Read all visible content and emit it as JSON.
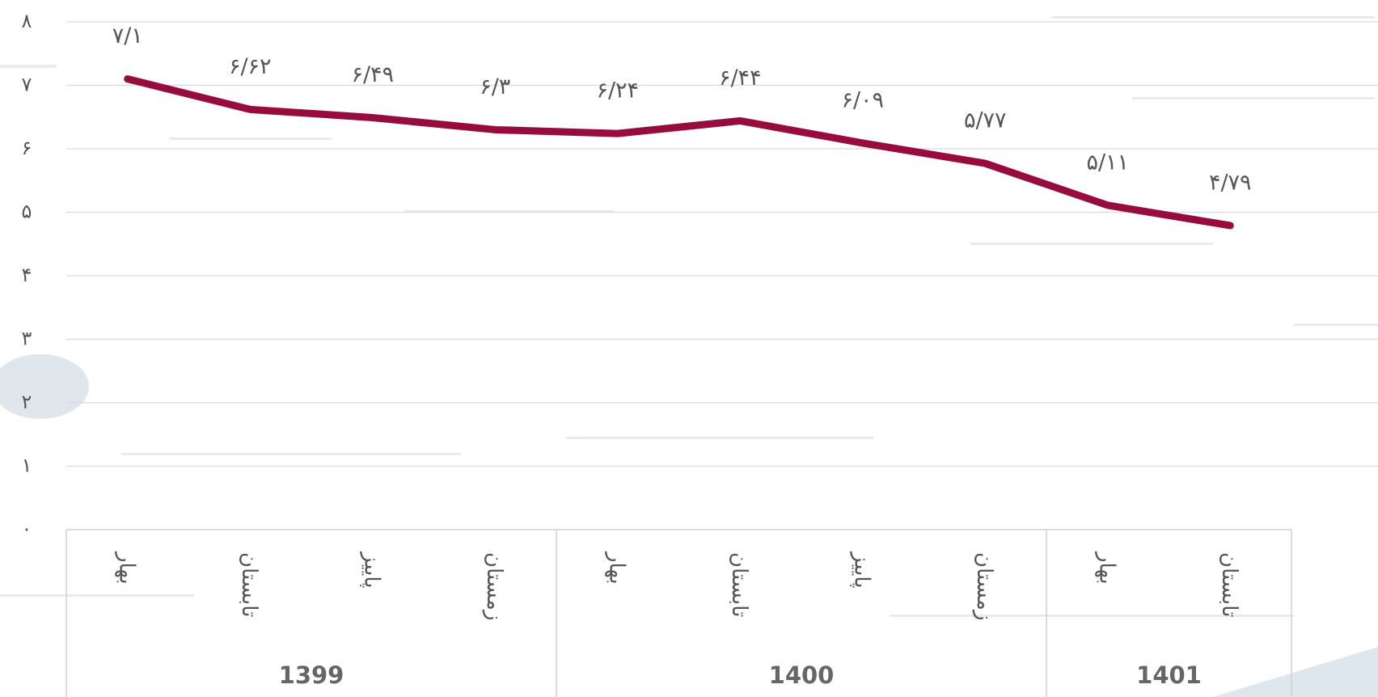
{
  "chart_data": {
    "type": "line",
    "categories": [
      "بهار",
      "تابستان",
      "پاییز",
      "زمستان",
      "بهار",
      "تابستان",
      "پاییز",
      "زمستان",
      "بهار",
      "تابستان"
    ],
    "groups": [
      "1399",
      "1399",
      "1399",
      "1399",
      "1400",
      "1400",
      "1400",
      "1400",
      "1401",
      "1401"
    ],
    "series": [
      {
        "color": "#960c3c",
        "values": [
          7.1,
          6.62,
          6.49,
          6.3,
          6.24,
          6.44,
          6.09,
          5.77,
          5.11,
          4.79
        ],
        "value_labels": [
          "۷/۱",
          "۶/۶۲",
          "۶/۴۹",
          "۶/۳",
          "۶/۲۴",
          "۶/۴۴",
          "۶/۰۹",
          "۵/۷۷",
          "۵/۱۱",
          "۴/۷۹"
        ]
      }
    ],
    "ylim": [
      0,
      8
    ],
    "yticks": [
      {
        "value": 0,
        "label": "۰"
      },
      {
        "value": 1,
        "label": "۱"
      },
      {
        "value": 2,
        "label": "۲"
      },
      {
        "value": 3,
        "label": "۳"
      },
      {
        "value": 4,
        "label": "۴"
      },
      {
        "value": 5,
        "label": "۵"
      },
      {
        "value": 6,
        "label": "۶"
      },
      {
        "value": 7,
        "label": "۷"
      },
      {
        "value": 8,
        "label": "۸"
      }
    ],
    "grid": true
  }
}
